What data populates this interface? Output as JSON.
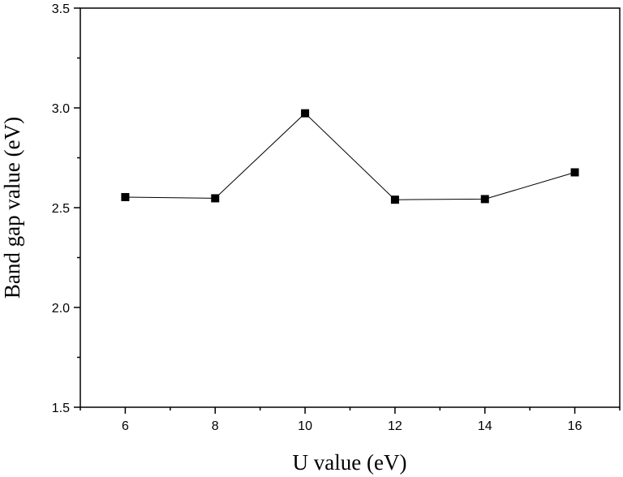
{
  "chart_data": {
    "type": "line",
    "title": "",
    "xlabel": "U value (eV)",
    "ylabel": "Band gap value (eV)",
    "x": [
      6,
      8,
      10,
      12,
      14,
      16
    ],
    "series": [
      {
        "values": [
          2.553,
          2.547,
          2.973,
          2.54,
          2.543,
          2.677
        ],
        "color": "#000000",
        "marker": "square"
      }
    ],
    "xlim": [
      5,
      17
    ],
    "ylim": [
      1.5,
      3.5
    ],
    "xticks": [
      6,
      8,
      10,
      12,
      14,
      16
    ],
    "xtick_labels": [
      "6",
      "8",
      "10",
      "12",
      "14",
      "16"
    ],
    "yticks": [
      1.5,
      2.0,
      2.5,
      3.0,
      3.5
    ],
    "ytick_labels": [
      "1.5",
      "2.0",
      "2.5",
      "3.0",
      "3.5"
    ],
    "grid": false,
    "legend": "none"
  }
}
